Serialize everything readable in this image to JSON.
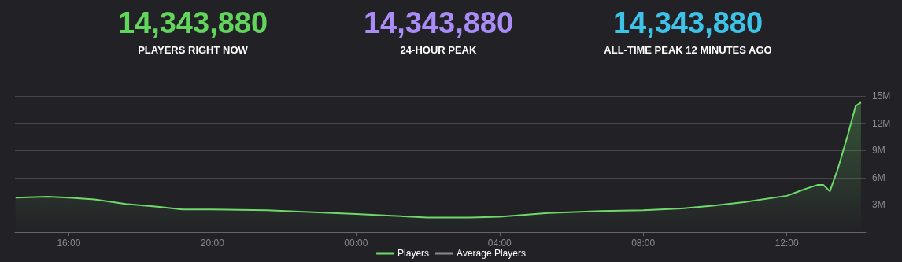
{
  "chart_data": [
    {
      "type": "other",
      "categories": [
        "PLAYERS RIGHT NOW",
        "24-HOUR PEAK",
        "ALL-TIME PEAK 12 MINUTES AGO"
      ],
      "colors": [
        "#62d55c",
        "#a98cf5",
        "#3ec3e8"
      ],
      "value_labels": [
        "14,343,880",
        "14,343,880",
        "14,343,880"
      ]
    },
    {
      "type": "area",
      "xlim": [
        "2000-01-01T14:30",
        "2000-01-02T14:12"
      ],
      "xticks": [
        {
          "value": "2000-01-01T16:00",
          "label": "16:00"
        },
        {
          "value": "2000-01-01T20:00",
          "label": "20:00"
        },
        {
          "value": "2000-01-02T00:00",
          "label": "00:00"
        },
        {
          "value": "2000-01-02T04:00",
          "label": "04:00"
        },
        {
          "value": "2000-01-02T08:00",
          "label": "08:00"
        },
        {
          "value": "2000-01-02T12:00",
          "label": "12:00"
        }
      ],
      "ylim": [
        0,
        15
      ],
      "yticks": [
        {
          "value": 0,
          "label": null
        },
        {
          "value": 3,
          "label": "3M"
        },
        {
          "value": 6,
          "label": "6M"
        },
        {
          "value": 9,
          "label": "9M"
        },
        {
          "value": 12,
          "label": "12M"
        },
        {
          "value": 15,
          "label": "15M"
        }
      ],
      "grid": "y",
      "legend": "bottom",
      "marker": "none",
      "series": [
        {
          "name": "Players",
          "color": "#6fd86a",
          "x": [
            "2000-01-01T14:31",
            "2000-01-01T15:25",
            "2000-01-01T16:00",
            "2000-01-01T16:43",
            "2000-01-01T17:35",
            "2000-01-01T18:28",
            "2000-01-01T19:10",
            "2000-01-01T20:00",
            "2000-01-01T21:31",
            "2000-01-01T22:49",
            "2000-01-02T00:00",
            "2000-01-02T01:00",
            "2000-01-02T01:59",
            "2000-01-02T03:11",
            "2000-01-02T04:00",
            "2000-01-02T05:21",
            "2000-01-02T06:40",
            "2000-01-02T08:00",
            "2000-01-02T09:04",
            "2000-01-02T09:56",
            "2000-01-02T10:48",
            "2000-01-02T12:00",
            "2000-01-02T12:33",
            "2000-01-02T12:52",
            "2000-01-02T13:01",
            "2000-01-02T13:12",
            "2000-01-02T13:25",
            "2000-01-02T13:42",
            "2000-01-02T13:55",
            "2000-01-02T14:04"
          ],
          "values": [
            3.8,
            3.9,
            3.8,
            3.6,
            3.1,
            2.8,
            2.5,
            2.5,
            2.4,
            2.2,
            2.0,
            1.8,
            1.6,
            1.6,
            1.7,
            2.1,
            2.3,
            2.4,
            2.6,
            2.9,
            3.3,
            4.0,
            4.8,
            5.2,
            5.2,
            4.5,
            6.9,
            10.7,
            13.9,
            14.3
          ]
        },
        {
          "name": "Average Players",
          "color": "#8a8a8e",
          "type": "line"
        }
      ]
    }
  ]
}
